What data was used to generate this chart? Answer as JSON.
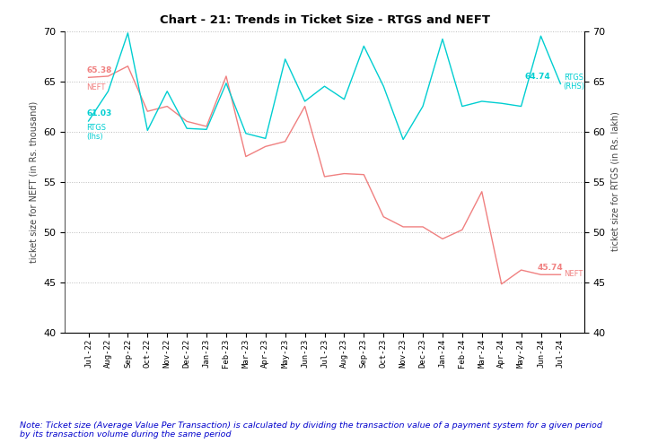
{
  "title": "Chart - 21: Trends in Ticket Size - RTGS and NEFT",
  "xlabel_months": [
    "Jul-22",
    "Aug-22",
    "Sep-22",
    "Oct-22",
    "Nov-22",
    "Dec-22",
    "Jan-23",
    "Feb-23",
    "Mar-23",
    "Apr-23",
    "May-23",
    "Jun-23",
    "Jul-23",
    "Aug-23",
    "Sep-23",
    "Oct-23",
    "Nov-23",
    "Dec-23",
    "Jan-24",
    "Feb-24",
    "Mar-24",
    "Apr-24",
    "May-24",
    "Jun-24",
    "Jul-24"
  ],
  "neft_values": [
    65.38,
    65.5,
    66.5,
    62.0,
    62.5,
    61.0,
    60.5,
    65.5,
    57.5,
    58.5,
    59.0,
    62.5,
    55.5,
    55.8,
    55.7,
    51.5,
    50.5,
    50.5,
    49.3,
    50.2,
    54.0,
    44.8,
    46.2,
    45.74,
    45.74
  ],
  "rtgs_values": [
    61.03,
    64.0,
    69.8,
    60.1,
    64.0,
    60.3,
    60.2,
    64.8,
    59.8,
    59.3,
    67.2,
    63.0,
    64.5,
    63.2,
    68.5,
    64.5,
    59.2,
    62.5,
    69.2,
    62.5,
    63.0,
    62.8,
    62.5,
    69.5,
    64.74
  ],
  "neft_color": "#F08080",
  "rtgs_color": "#00CED1",
  "ylabel_left": "ticket size for NEFT (in Rs. thousand)",
  "ylabel_right": "ticket size for RTGS (in Rs. lakh)",
  "ylim": [
    40,
    70
  ],
  "yticks": [
    40,
    45,
    50,
    55,
    60,
    65,
    70
  ],
  "note": "Note: Ticket size (Average Value Per Transaction) is calculated by dividing the transaction value of a payment system for a given period\nby its transaction volume during the same period",
  "bg_color": "#ffffff",
  "grid_color": "#bbbbbb",
  "neft_start_value": "65.38",
  "rtgs_start_value": "61.03",
  "neft_end_value": "45.74",
  "rtgs_end_value": "64.74"
}
